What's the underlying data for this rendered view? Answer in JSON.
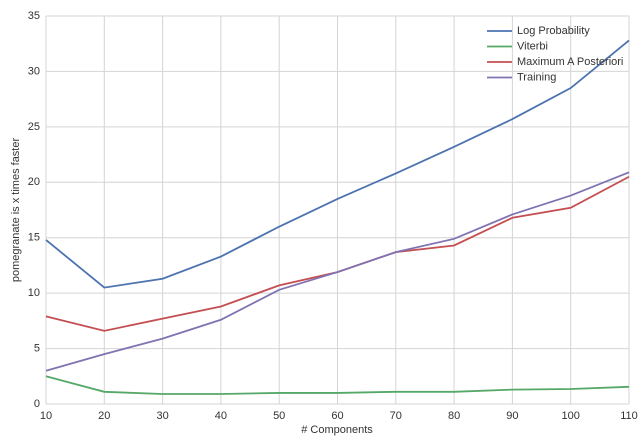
{
  "chart_data": {
    "type": "line",
    "x_label": "# Components",
    "y_label": "pomegranate is x times faster",
    "x": [
      10,
      20,
      30,
      40,
      50,
      60,
      70,
      80,
      90,
      100,
      110
    ],
    "series": [
      {
        "name": "Log Probability",
        "color": "#4c72b0",
        "values": [
          14.8,
          10.5,
          11.3,
          13.3,
          16.0,
          18.5,
          20.8,
          23.2,
          25.7,
          28.5,
          32.8
        ]
      },
      {
        "name": "Viterbi",
        "color": "#55a868",
        "values": [
          2.5,
          1.1,
          0.9,
          0.9,
          1.0,
          1.0,
          1.1,
          1.1,
          1.3,
          1.35,
          1.55
        ]
      },
      {
        "name": "Maximum A Posteriori",
        "color": "#c44e52",
        "values": [
          7.9,
          6.6,
          7.7,
          8.8,
          10.7,
          11.9,
          13.7,
          14.3,
          16.8,
          17.7,
          20.5
        ]
      },
      {
        "name": "Training",
        "color": "#8172b2",
        "values": [
          3.0,
          4.5,
          5.9,
          7.6,
          10.3,
          11.9,
          13.7,
          14.9,
          17.1,
          18.8,
          20.9
        ]
      }
    ],
    "xlim": [
      10,
      110
    ],
    "xticks": [
      10,
      20,
      30,
      40,
      50,
      60,
      70,
      80,
      90,
      100,
      110
    ],
    "ylim": [
      0,
      35
    ],
    "yticks": [
      0,
      5,
      10,
      15,
      20,
      25,
      30,
      35
    ],
    "grid": true,
    "legend": "upper-right"
  }
}
